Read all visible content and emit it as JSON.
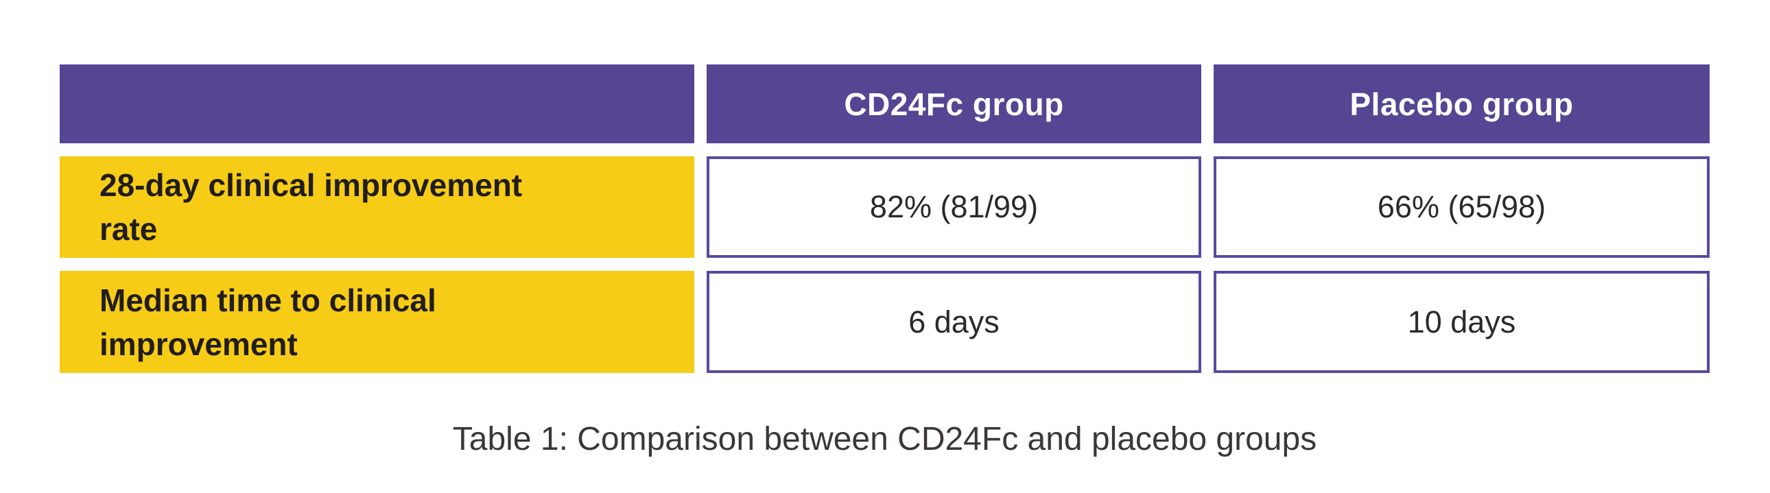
{
  "page": {
    "background": "#ffffff"
  },
  "colors": {
    "header_purple": "#554593",
    "cell_border_purple": "#5a49a0",
    "label_yellow": "#f6cc16",
    "header_text": "#ffffff",
    "label_text": "#211d1e",
    "value_text": "#2b2a2a",
    "caption_text": "#3b3738"
  },
  "table": {
    "columns": [
      {
        "label": ""
      },
      {
        "label": "CD24Fc group"
      },
      {
        "label": "Placebo group"
      }
    ],
    "rows": [
      {
        "label": "28-day clinical improvement rate",
        "values": [
          "82% (81/99)",
          "66% (65/98)"
        ]
      },
      {
        "label": "Median time to clinical improvement",
        "values": [
          "6 days",
          "10 days"
        ]
      }
    ],
    "caption": "Table 1: Comparison between CD24Fc and placebo groups"
  },
  "chart_data": {
    "type": "table",
    "title": "Table 1: Comparison between CD24Fc and placebo groups",
    "columns": [
      "",
      "CD24Fc group",
      "Placebo group"
    ],
    "rows": [
      [
        "28-day clinical improvement rate",
        "82% (81/99)",
        "66% (65/98)"
      ],
      [
        "Median time to clinical improvement",
        "6 days",
        "10 days"
      ]
    ],
    "series": [
      {
        "name": "CD24Fc group",
        "improvement_rate_percent": 82,
        "improvement_fraction": "81/99",
        "median_days_to_improvement": 6
      },
      {
        "name": "Placebo group",
        "improvement_rate_percent": 66,
        "improvement_fraction": "65/98",
        "median_days_to_improvement": 10
      }
    ],
    "layout": {
      "header_fill": "#554593",
      "row_label_fill": "#f6cc16",
      "value_cell_fill": "#ffffff",
      "value_cell_border": "#5a49a0",
      "caption_position": "bottom-center"
    }
  }
}
